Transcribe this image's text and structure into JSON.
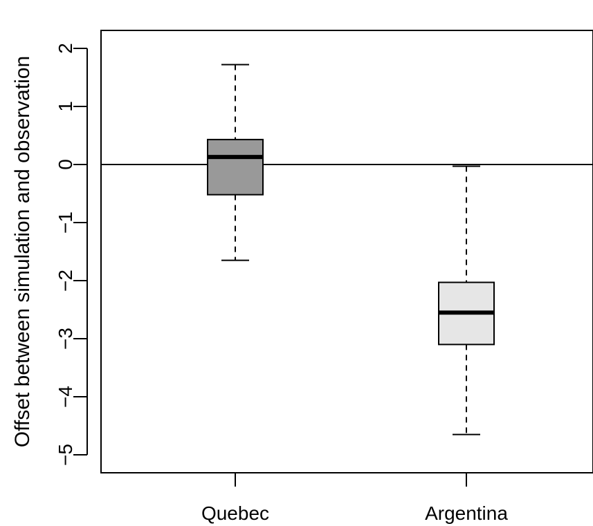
{
  "chart_data": {
    "type": "box",
    "title": "",
    "xlabel": "",
    "ylabel": "Offset between simulation and observation",
    "ylim": [
      -5.25,
      2.3
    ],
    "yticks": [
      2,
      1,
      0,
      -1,
      -2,
      -3,
      -4,
      -5
    ],
    "ytick_labels": [
      "2",
      "1",
      "0",
      "−1",
      "−2",
      "−3",
      "−4",
      "−5"
    ],
    "reference_line": 0,
    "grid": false,
    "categories": [
      "Quebec",
      "Argentina"
    ],
    "boxes": [
      {
        "name": "Quebec",
        "whisker_low": -1.65,
        "q1": -0.52,
        "median": 0.13,
        "q3": 0.43,
        "whisker_high": 1.72,
        "fill": "#999999"
      },
      {
        "name": "Argentina",
        "whisker_low": -4.65,
        "q1": -3.1,
        "median": -2.55,
        "q3": -2.03,
        "whisker_high": -0.03,
        "fill": "#e6e6e6"
      }
    ]
  }
}
